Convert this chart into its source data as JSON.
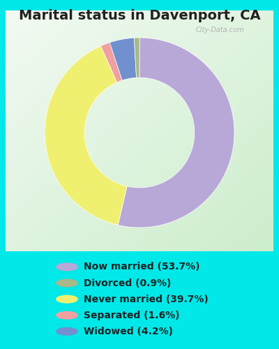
{
  "title": "Marital status in Davenport, CA",
  "values": [
    53.7,
    39.7,
    1.6,
    4.2,
    0.9
  ],
  "colors": [
    "#b8a8d8",
    "#f0f070",
    "#f0a0a0",
    "#7090d0",
    "#a8b888"
  ],
  "legend_labels": [
    "Now married (53.7%)",
    "Divorced (0.9%)",
    "Never married (39.7%)",
    "Separated (1.6%)",
    "Widowed (4.2%)"
  ],
  "legend_colors": [
    "#b8a8d8",
    "#a8b888",
    "#f0f070",
    "#f0a0a0",
    "#7090d0"
  ],
  "outer_bg": "#00e8e8",
  "chart_bg": "#e0f0e0",
  "title_fontsize": 14,
  "watermark": "City-Data.com",
  "start_angle": 90,
  "donut_width": 0.42
}
